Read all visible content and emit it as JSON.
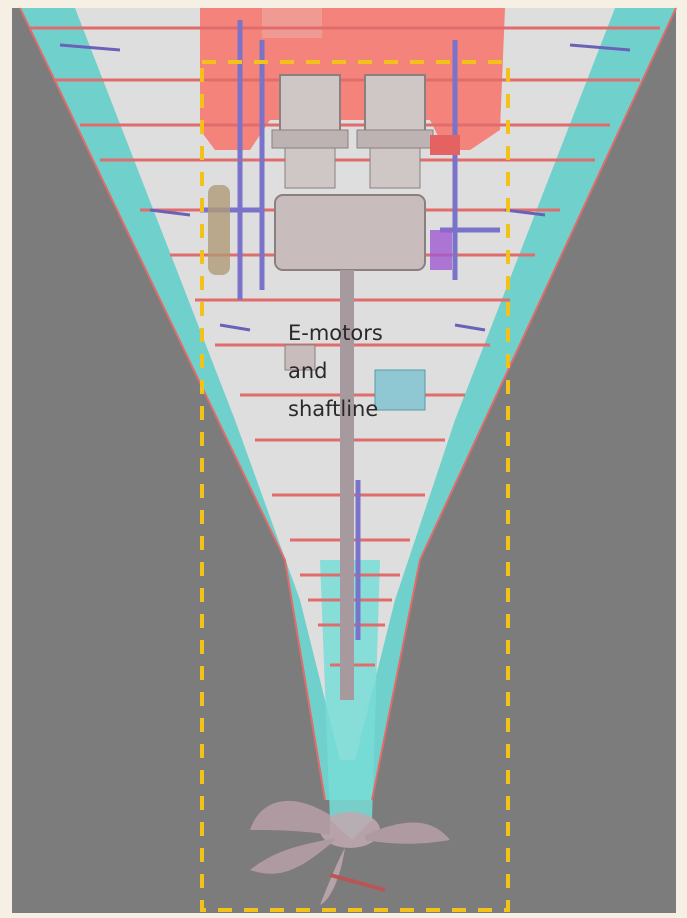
{
  "diagram": {
    "label": "E-motors\nand\nshaftline",
    "colors": {
      "background": "#f5efe4",
      "sea_gray": "#7c7c7c",
      "hull_cyan": "#5fd6d0",
      "hull_interior": "#dcdcdc",
      "deck_red": "#f07a72",
      "frame_red": "#e06c6c",
      "pipe_blue": "#7a73c9",
      "highlight_yellow": "#f2c21a",
      "propeller": "#b8a0a8"
    }
  }
}
